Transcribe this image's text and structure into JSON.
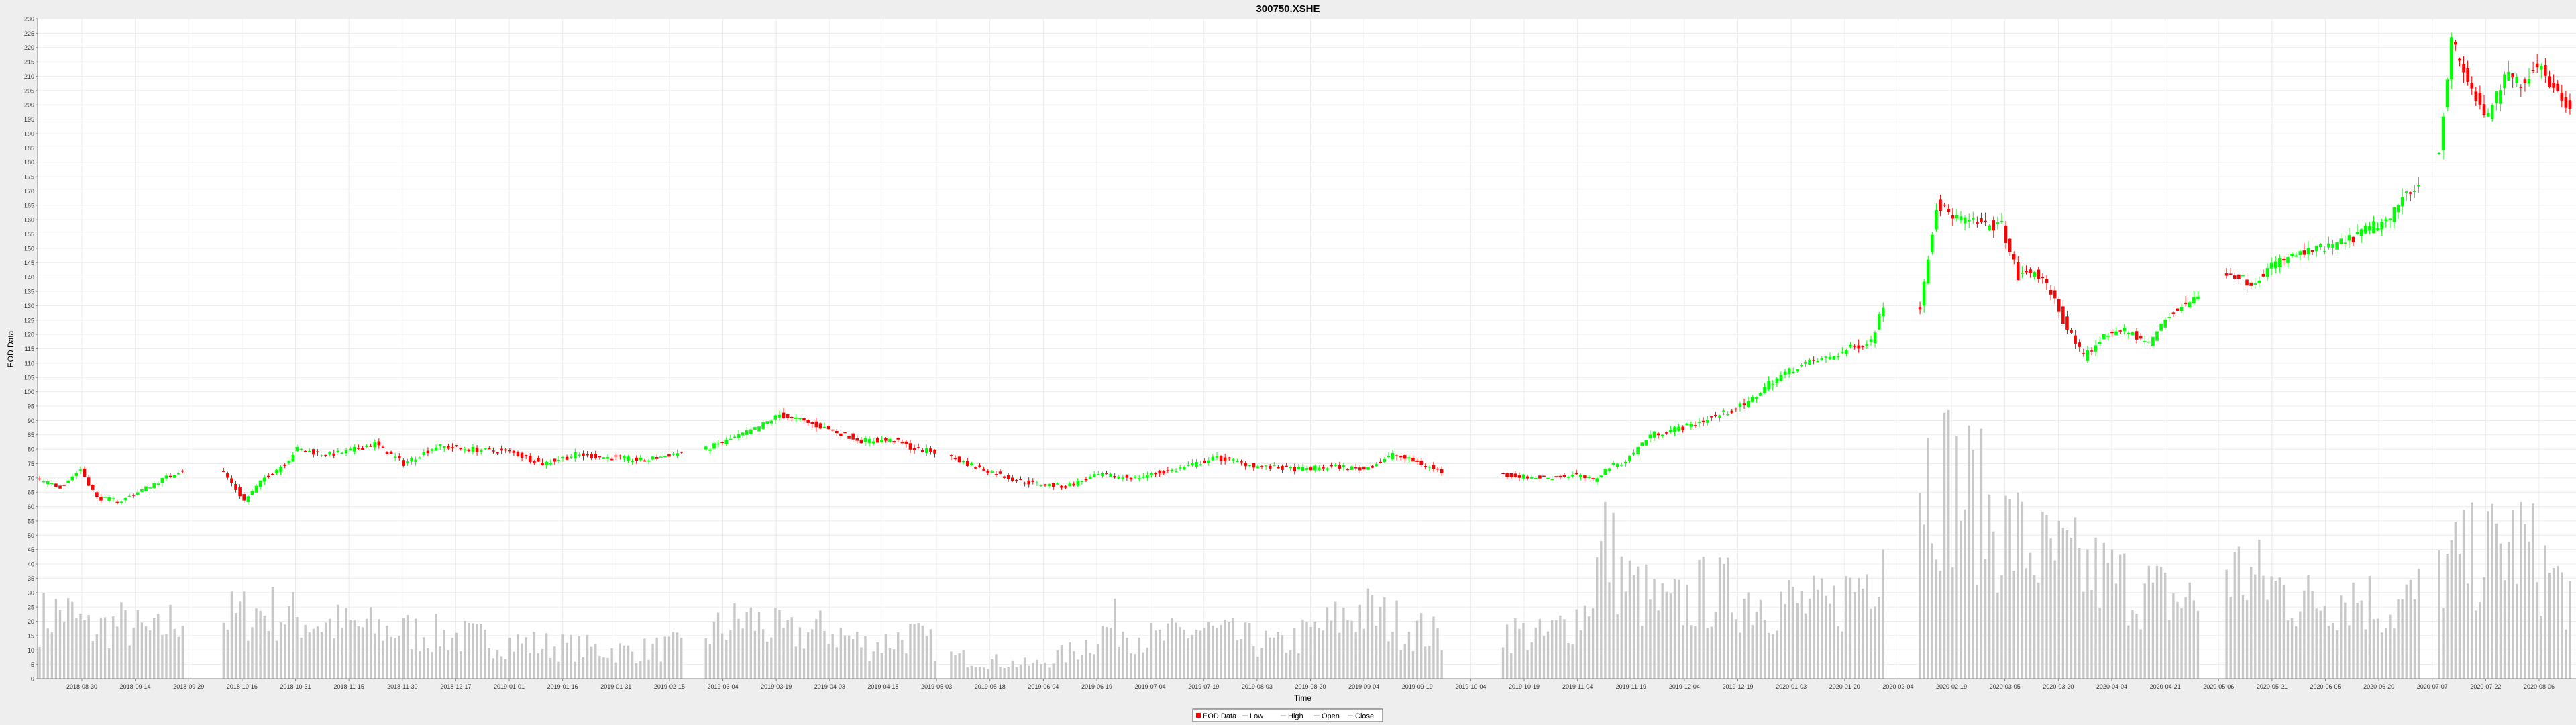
{
  "chart_data": {
    "type": "candlestick",
    "title": "300750.XSHE",
    "xlabel": "Time",
    "ylabel": "EOD Data",
    "ylim": [
      0,
      230
    ],
    "y_ticks": [
      0,
      5,
      10,
      15,
      20,
      25,
      30,
      35,
      40,
      45,
      50,
      55,
      60,
      65,
      70,
      75,
      80,
      85,
      90,
      95,
      100,
      105,
      110,
      115,
      120,
      125,
      130,
      135,
      140,
      145,
      150,
      155,
      160,
      165,
      170,
      175,
      180,
      185,
      190,
      195,
      200,
      205,
      210,
      215,
      220,
      225,
      230
    ],
    "x_ticks": [
      "2018-08-30",
      "2018-09-14",
      "2018-09-29",
      "2018-10-16",
      "2018-10-31",
      "2018-11-15",
      "2018-11-30",
      "2018-12-17",
      "2019-01-01",
      "2019-01-16",
      "2019-01-31",
      "2019-02-15",
      "2019-03-04",
      "2019-03-19",
      "2019-04-03",
      "2019-04-18",
      "2019-05-03",
      "2019-05-18",
      "2019-06-04",
      "2019-06-19",
      "2019-07-04",
      "2019-07-19",
      "2019-08-03",
      "2019-08-20",
      "2019-09-04",
      "2019-09-19",
      "2019-10-04",
      "2019-10-19",
      "2019-11-04",
      "2019-11-19",
      "2019-12-04",
      "2019-12-19",
      "2020-01-03",
      "2020-01-20",
      "2020-02-04",
      "2020-02-19",
      "2020-03-05",
      "2020-03-20",
      "2020-04-04",
      "2020-04-21",
      "2020-05-06",
      "2020-05-21",
      "2020-06-05",
      "2020-06-20",
      "2020-07-07",
      "2020-07-22",
      "2020-08-06"
    ],
    "grid": true,
    "legend": [
      "EOD Data",
      "Low",
      "High",
      "Open",
      "Close"
    ],
    "legend_placement": "bottom-center",
    "colors": {
      "up": "#00ff00",
      "down": "#ff0000",
      "volume": "#c8c8c8",
      "legend_box": "#ff0000"
    },
    "segments": [
      {
        "start_index": 0,
        "anchors": [
          [
            0,
            69
          ],
          [
            5,
            67
          ],
          [
            10,
            73
          ],
          [
            14,
            63
          ],
          [
            20,
            62
          ],
          [
            28,
            68
          ],
          [
            35,
            73
          ]
        ]
      },
      {
        "start_index": 45,
        "anchors": [
          [
            0,
            72
          ],
          [
            5,
            62
          ],
          [
            10,
            70
          ],
          [
            15,
            75
          ],
          [
            18,
            80
          ],
          [
            25,
            78
          ],
          [
            30,
            79
          ],
          [
            37,
            82
          ],
          [
            44,
            75
          ],
          [
            52,
            81
          ],
          [
            60,
            80
          ],
          [
            70,
            79
          ],
          [
            78,
            75
          ],
          [
            86,
            78
          ],
          [
            95,
            77
          ],
          [
            103,
            76
          ],
          [
            112,
            79
          ]
        ]
      },
      {
        "start_index": 163,
        "anchors": [
          [
            0,
            80
          ],
          [
            7,
            84
          ],
          [
            12,
            87
          ],
          [
            18,
            92
          ],
          [
            23,
            90
          ],
          [
            30,
            87
          ],
          [
            38,
            83
          ],
          [
            46,
            83
          ],
          [
            51,
            80
          ],
          [
            56,
            79
          ]
        ]
      },
      {
        "start_index": 223,
        "anchors": [
          [
            0,
            77
          ],
          [
            8,
            73
          ],
          [
            14,
            70
          ],
          [
            20,
            68
          ],
          [
            28,
            67
          ],
          [
            36,
            71
          ],
          [
            45,
            70
          ],
          [
            55,
            73
          ],
          [
            65,
            77
          ],
          [
            75,
            74
          ],
          [
            85,
            73
          ],
          [
            95,
            74
          ],
          [
            101,
            73
          ],
          [
            108,
            78
          ],
          [
            115,
            75
          ],
          [
            120,
            72
          ]
        ]
      },
      {
        "start_index": 358,
        "anchors": [
          [
            0,
            71
          ],
          [
            10,
            70
          ],
          [
            18,
            71
          ],
          [
            22,
            69
          ],
          [
            26,
            74
          ],
          [
            30,
            76
          ],
          [
            36,
            85
          ],
          [
            45,
            88
          ],
          [
            55,
            93
          ],
          [
            60,
            96
          ],
          [
            65,
            103
          ],
          [
            72,
            109
          ],
          [
            80,
            112
          ],
          [
            85,
            115
          ],
          [
            90,
            118
          ],
          [
            93,
            130
          ]
        ]
      },
      {
        "start_index": 460,
        "anchors": [
          [
            0,
            130
          ],
          [
            4,
            165
          ],
          [
            10,
            160
          ],
          [
            16,
            158
          ],
          [
            20,
            158
          ],
          [
            24,
            140
          ],
          [
            28,
            142
          ],
          [
            32,
            135
          ],
          [
            36,
            122
          ],
          [
            40,
            112
          ],
          [
            44,
            118
          ],
          [
            48,
            122
          ],
          [
            52,
            120
          ],
          [
            56,
            117
          ],
          [
            60,
            125
          ],
          [
            64,
            130
          ],
          [
            68,
            133
          ]
        ]
      },
      {
        "start_index": 535,
        "anchors": [
          [
            0,
            142
          ],
          [
            6,
            138
          ],
          [
            12,
            145
          ],
          [
            18,
            148
          ],
          [
            24,
            150
          ],
          [
            30,
            153
          ],
          [
            36,
            158
          ],
          [
            40,
            160
          ],
          [
            44,
            170
          ],
          [
            47,
            172
          ]
        ]
      },
      {
        "start_index": 587,
        "anchors": [
          [
            0,
            185
          ],
          [
            3,
            222
          ],
          [
            8,
            205
          ],
          [
            12,
            195
          ],
          [
            16,
            210
          ],
          [
            20,
            208
          ],
          [
            25,
            215
          ],
          [
            28,
            205
          ],
          [
            32,
            200
          ]
        ]
      }
    ],
    "volume_segments": [
      {
        "start_index": 0,
        "anchors": [
          [
            0,
            22
          ],
          [
            6,
            25
          ],
          [
            12,
            18
          ],
          [
            20,
            20
          ],
          [
            28,
            16
          ],
          [
            35,
            24
          ]
        ]
      },
      {
        "start_index": 45,
        "anchors": [
          [
            0,
            22
          ],
          [
            10,
            25
          ],
          [
            25,
            20
          ],
          [
            40,
            18
          ],
          [
            60,
            15
          ],
          [
            80,
            12
          ],
          [
            100,
            10
          ],
          [
            112,
            12
          ]
        ]
      },
      {
        "start_index": 163,
        "anchors": [
          [
            0,
            16
          ],
          [
            10,
            22
          ],
          [
            20,
            16
          ],
          [
            30,
            18
          ],
          [
            40,
            12
          ],
          [
            50,
            16
          ],
          [
            56,
            12
          ]
        ]
      },
      {
        "start_index": 223,
        "anchors": [
          [
            0,
            8
          ],
          [
            20,
            5
          ],
          [
            30,
            10
          ],
          [
            40,
            20
          ],
          [
            50,
            14
          ],
          [
            60,
            18
          ],
          [
            70,
            15
          ],
          [
            80,
            12
          ],
          [
            90,
            18
          ],
          [
            100,
            25
          ],
          [
            110,
            20
          ],
          [
            120,
            15
          ]
        ]
      },
      {
        "start_index": 358,
        "anchors": [
          [
            0,
            18
          ],
          [
            10,
            15
          ],
          [
            20,
            25
          ],
          [
            25,
            50
          ],
          [
            30,
            35
          ],
          [
            40,
            25
          ],
          [
            50,
            32
          ],
          [
            60,
            30
          ],
          [
            70,
            28
          ],
          [
            80,
            25
          ],
          [
            90,
            40
          ],
          [
            93,
            55
          ]
        ]
      },
      {
        "start_index": 460,
        "anchors": [
          [
            0,
            80
          ],
          [
            10,
            70
          ],
          [
            20,
            55
          ],
          [
            30,
            45
          ],
          [
            40,
            40
          ],
          [
            50,
            35
          ],
          [
            60,
            30
          ],
          [
            68,
            28
          ]
        ]
      },
      {
        "start_index": 535,
        "anchors": [
          [
            0,
            40
          ],
          [
            10,
            35
          ],
          [
            20,
            28
          ],
          [
            30,
            32
          ],
          [
            40,
            25
          ],
          [
            47,
            30
          ]
        ]
      },
      {
        "start_index": 587,
        "anchors": [
          [
            0,
            40
          ],
          [
            10,
            45
          ],
          [
            20,
            50
          ],
          [
            32,
            30
          ]
        ]
      }
    ]
  }
}
